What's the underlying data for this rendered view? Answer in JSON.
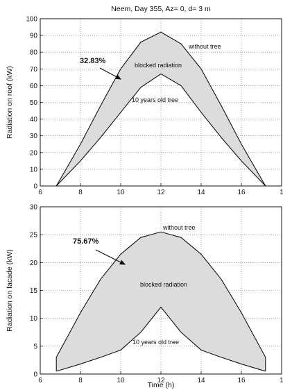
{
  "chart_data": [
    {
      "type": "area",
      "title": "Neem, Day 355, Az= 0, d= 3 m",
      "xlabel": "",
      "ylabel": "Radiation on roof (kW)",
      "xlim": [
        6,
        18
      ],
      "ylim": [
        0,
        100
      ],
      "x_ticks": [
        "6",
        "8",
        "10",
        "12",
        "14",
        "16",
        "1"
      ],
      "y_ticks": [
        "0",
        "10",
        "20",
        "30",
        "40",
        "50",
        "60",
        "70",
        "80",
        "90",
        "100"
      ],
      "grid": true,
      "series": [
        {
          "name": "without tree",
          "x": [
            6.8,
            8,
            9,
            10,
            11,
            12,
            13,
            14,
            15,
            16,
            17.2
          ],
          "values": [
            0,
            25,
            48,
            70,
            86,
            92,
            85,
            70,
            48,
            25,
            0
          ]
        },
        {
          "name": "10 years old tree",
          "x": [
            6.8,
            8,
            9,
            10,
            11,
            12,
            13,
            14,
            15,
            16,
            17.2
          ],
          "values": [
            0,
            15,
            29,
            44,
            59,
            67,
            60,
            44,
            29,
            15,
            0
          ]
        }
      ],
      "annotations": {
        "percent": "32.83%",
        "blocked": "blocked radiation"
      }
    },
    {
      "type": "area",
      "title": "",
      "xlabel": "Time (h)",
      "ylabel": "Radiation on facade (kW)",
      "xlim": [
        6,
        18
      ],
      "ylim": [
        0,
        30
      ],
      "x_ticks": [
        "6",
        "8",
        "10",
        "12",
        "14",
        "16",
        "1"
      ],
      "y_ticks": [
        "0",
        "5",
        "10",
        "15",
        "20",
        "25",
        "30"
      ],
      "grid": true,
      "series": [
        {
          "name": "without tree",
          "x": [
            6.8,
            6.8,
            8,
            9,
            10,
            11,
            12,
            13,
            14,
            15,
            16,
            17.2,
            17.2
          ],
          "values": [
            0.5,
            3,
            11,
            17,
            21.5,
            24.5,
            25.5,
            24.5,
            21.5,
            17,
            11,
            3,
            0.5
          ]
        },
        {
          "name": "10 years old tree",
          "x": [
            6.8,
            8,
            9,
            10,
            11,
            12,
            13,
            14,
            15,
            16,
            17.2
          ],
          "values": [
            0.5,
            1.8,
            3,
            4.3,
            7.5,
            12,
            7.5,
            4.3,
            3,
            1.8,
            0.5
          ]
        }
      ],
      "annotations": {
        "percent": "75.67%",
        "blocked": "blocked radiation"
      }
    }
  ]
}
